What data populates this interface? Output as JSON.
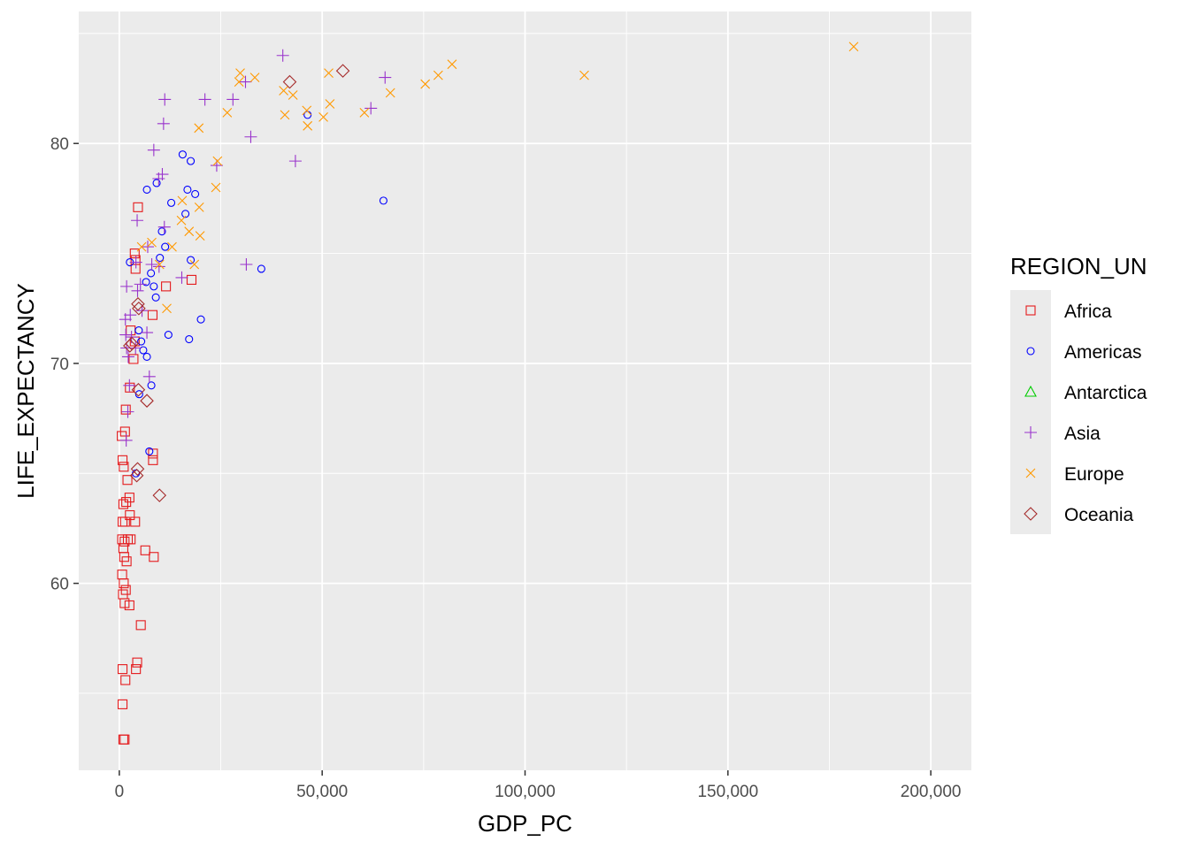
{
  "chart_data": {
    "type": "scatter",
    "xlabel": "GDP_PC",
    "ylabel": "LIFE_EXPECTANCY",
    "xlim": [
      -10000,
      210000
    ],
    "ylim": [
      51.5,
      86.0
    ],
    "x_ticks": [
      0,
      50000,
      100000,
      150000,
      200000
    ],
    "x_tick_labels": [
      "0",
      "50,000",
      "100,000",
      "150,000",
      "200,000"
    ],
    "y_ticks": [
      60,
      70,
      80
    ],
    "y_tick_labels": [
      "60",
      "70",
      "80"
    ],
    "grid": true,
    "legend": {
      "title": "REGION_UN",
      "position": "right"
    },
    "series": [
      {
        "name": "Africa",
        "color": "#e41a1c",
        "shape": "square",
        "points": [
          [
            1000,
            52.9
          ],
          [
            1300,
            52.9
          ],
          [
            800,
            54.5
          ],
          [
            1500,
            55.6
          ],
          [
            800,
            56.1
          ],
          [
            4100,
            56.1
          ],
          [
            4400,
            56.4
          ],
          [
            5300,
            58.1
          ],
          [
            1300,
            59.1
          ],
          [
            2500,
            59.0
          ],
          [
            900,
            59.5
          ],
          [
            1600,
            59.7
          ],
          [
            1100,
            60.0
          ],
          [
            700,
            60.4
          ],
          [
            1800,
            61.0
          ],
          [
            1200,
            61.2
          ],
          [
            8500,
            61.2
          ],
          [
            6400,
            61.5
          ],
          [
            1000,
            61.6
          ],
          [
            1300,
            61.9
          ],
          [
            700,
            62.0
          ],
          [
            2800,
            62.0
          ],
          [
            2100,
            62.0
          ],
          [
            800,
            62.8
          ],
          [
            1400,
            62.8
          ],
          [
            3900,
            62.8
          ],
          [
            2600,
            63.1
          ],
          [
            1000,
            63.6
          ],
          [
            1700,
            63.7
          ],
          [
            2500,
            63.9
          ],
          [
            2000,
            64.7
          ],
          [
            1100,
            65.3
          ],
          [
            800,
            65.6
          ],
          [
            8300,
            65.6
          ],
          [
            8300,
            65.9
          ],
          [
            600,
            66.7
          ],
          [
            1400,
            66.9
          ],
          [
            1600,
            67.9
          ],
          [
            2600,
            68.9
          ],
          [
            3500,
            70.2
          ],
          [
            3800,
            71.0
          ],
          [
            2800,
            71.5
          ],
          [
            8200,
            72.2
          ],
          [
            11500,
            73.5
          ],
          [
            17800,
            73.8
          ],
          [
            4000,
            74.3
          ],
          [
            4000,
            74.7
          ],
          [
            3800,
            75.0
          ],
          [
            4600,
            77.1
          ]
        ]
      },
      {
        "name": "Americas",
        "color": "#0000ff",
        "shape": "circle",
        "points": [
          [
            4100,
            65.0
          ],
          [
            7400,
            66.0
          ],
          [
            4900,
            68.6
          ],
          [
            7900,
            69.0
          ],
          [
            6800,
            70.3
          ],
          [
            5900,
            70.6
          ],
          [
            5400,
            71.0
          ],
          [
            4800,
            71.5
          ],
          [
            12100,
            71.3
          ],
          [
            17200,
            71.1
          ],
          [
            20100,
            72.0
          ],
          [
            9000,
            73.0
          ],
          [
            8500,
            73.5
          ],
          [
            6600,
            73.7
          ],
          [
            7800,
            74.1
          ],
          [
            10000,
            74.8
          ],
          [
            17600,
            74.7
          ],
          [
            2600,
            74.6
          ],
          [
            35000,
            74.3
          ],
          [
            11300,
            75.3
          ],
          [
            10500,
            76.0
          ],
          [
            16300,
            76.8
          ],
          [
            12800,
            77.3
          ],
          [
            18700,
            77.7
          ],
          [
            16800,
            77.9
          ],
          [
            6800,
            77.9
          ],
          [
            9200,
            78.2
          ],
          [
            17600,
            79.2
          ],
          [
            15600,
            79.5
          ],
          [
            46400,
            81.3
          ],
          [
            65100,
            77.4
          ]
        ]
      },
      {
        "name": "Antarctica",
        "color": "#00cc00",
        "shape": "triangle",
        "points": []
      },
      {
        "name": "Asia",
        "color": "#9933cc",
        "shape": "plus",
        "points": [
          [
            1700,
            66.5
          ],
          [
            2100,
            67.8
          ],
          [
            7400,
            69.4
          ],
          [
            2500,
            69.0
          ],
          [
            2200,
            70.3
          ],
          [
            1800,
            70.7
          ],
          [
            4000,
            70.7
          ],
          [
            3000,
            71.2
          ],
          [
            1600,
            71.3
          ],
          [
            6800,
            71.4
          ],
          [
            1500,
            72.0
          ],
          [
            2700,
            72.2
          ],
          [
            5600,
            72.4
          ],
          [
            1800,
            73.5
          ],
          [
            5200,
            73.6
          ],
          [
            4500,
            73.3
          ],
          [
            15400,
            73.9
          ],
          [
            9800,
            74.4
          ],
          [
            4100,
            74.6
          ],
          [
            8000,
            74.5
          ],
          [
            31300,
            74.5
          ],
          [
            4400,
            76.5
          ],
          [
            11100,
            76.2
          ],
          [
            7000,
            75.3
          ],
          [
            9700,
            78.4
          ],
          [
            10600,
            78.6
          ],
          [
            8500,
            79.7
          ],
          [
            24000,
            79.0
          ],
          [
            43400,
            79.2
          ],
          [
            10900,
            80.9
          ],
          [
            32400,
            80.3
          ],
          [
            11200,
            82.0
          ],
          [
            21100,
            82.0
          ],
          [
            28000,
            82.0
          ],
          [
            31100,
            82.8
          ],
          [
            40300,
            84.0
          ],
          [
            62000,
            81.6
          ],
          [
            65500,
            83.0
          ]
        ]
      },
      {
        "name": "Europe",
        "color": "#ff9900",
        "shape": "x",
        "points": [
          [
            11700,
            72.5
          ],
          [
            9900,
            74.5
          ],
          [
            18500,
            74.5
          ],
          [
            5500,
            75.3
          ],
          [
            8000,
            75.5
          ],
          [
            13000,
            75.3
          ],
          [
            17200,
            76.0
          ],
          [
            19900,
            75.8
          ],
          [
            15300,
            76.5
          ],
          [
            15500,
            77.4
          ],
          [
            19700,
            77.1
          ],
          [
            23800,
            78.0
          ],
          [
            24200,
            79.2
          ],
          [
            19600,
            80.7
          ],
          [
            26600,
            81.4
          ],
          [
            29500,
            82.8
          ],
          [
            29800,
            83.2
          ],
          [
            33400,
            83.0
          ],
          [
            40800,
            81.3
          ],
          [
            40500,
            82.4
          ],
          [
            42800,
            82.2
          ],
          [
            46200,
            81.5
          ],
          [
            46400,
            80.8
          ],
          [
            50300,
            81.2
          ],
          [
            51600,
            83.2
          ],
          [
            51900,
            81.8
          ],
          [
            60400,
            81.4
          ],
          [
            66800,
            82.3
          ],
          [
            75400,
            82.7
          ],
          [
            78600,
            83.1
          ],
          [
            82000,
            83.6
          ],
          [
            114600,
            83.1
          ],
          [
            181000,
            84.4
          ]
        ]
      },
      {
        "name": "Oceania",
        "color": "#a52a2a",
        "shape": "diamond",
        "points": [
          [
            9900,
            64.0
          ],
          [
            4300,
            64.9
          ],
          [
            4500,
            65.2
          ],
          [
            6800,
            68.3
          ],
          [
            4700,
            68.8
          ],
          [
            2600,
            70.8
          ],
          [
            3100,
            70.9
          ],
          [
            4800,
            72.5
          ],
          [
            4600,
            72.7
          ],
          [
            42000,
            82.8
          ],
          [
            55100,
            83.3
          ]
        ]
      }
    ]
  }
}
